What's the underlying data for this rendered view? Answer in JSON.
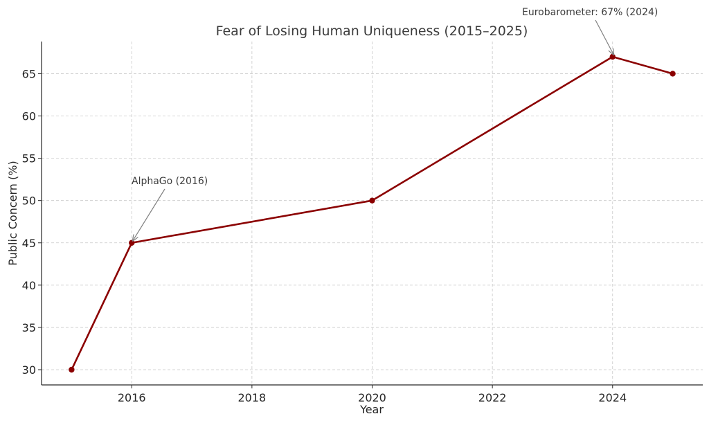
{
  "chart_data": {
    "type": "line",
    "title": "Fear of Losing Human Uniqueness (2015–2025)",
    "xlabel": "Year",
    "ylabel": "Public Concern (%)",
    "xlim": [
      2014.5,
      2025.5
    ],
    "ylim": [
      28.2,
      68.8
    ],
    "xticks": [
      2016,
      2018,
      2020,
      2022,
      2024
    ],
    "yticks": [
      30,
      35,
      40,
      45,
      50,
      55,
      60,
      65
    ],
    "grid": true,
    "series": [
      {
        "color": "#8b0000",
        "marker": "circle",
        "points": [
          {
            "x": 2015,
            "y": 30
          },
          {
            "x": 2016,
            "y": 45
          },
          {
            "x": 2020,
            "y": 50
          },
          {
            "x": 2024,
            "y": 67
          },
          {
            "x": 2025,
            "y": 65
          }
        ]
      }
    ],
    "annotations": [
      {
        "text": "AlphaGo (2016)",
        "x": 2016,
        "y": 45
      },
      {
        "text": "Eurobarometer: 67% (2024)",
        "x": 2024,
        "y": 67
      }
    ]
  }
}
